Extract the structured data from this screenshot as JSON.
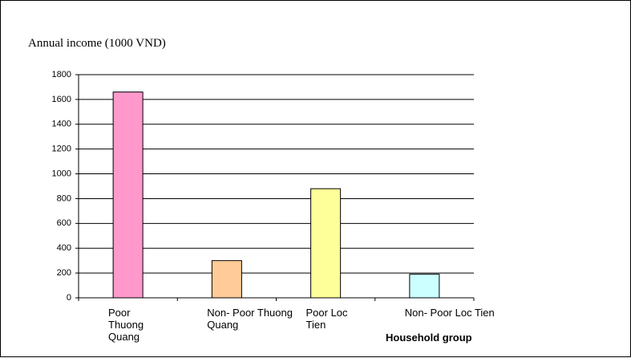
{
  "chart_data": {
    "type": "bar",
    "title": "Annual income  (1000 VND)",
    "x_label": "Household group",
    "categories": [
      "Poor Thuong Quang",
      "Non- Poor Thuong Quang",
      "Poor Loc Tien",
      "Non- Poor Loc Tien"
    ],
    "values": [
      1660,
      300,
      880,
      190
    ],
    "colors": [
      "#ff99cc",
      "#ffcc99",
      "#ffff99",
      "#ccffff"
    ],
    "ylim": [
      0,
      1800
    ],
    "yticks": [
      0,
      200,
      400,
      600,
      800,
      1000,
      1200,
      1400,
      1600,
      1800
    ],
    "grid": true
  }
}
